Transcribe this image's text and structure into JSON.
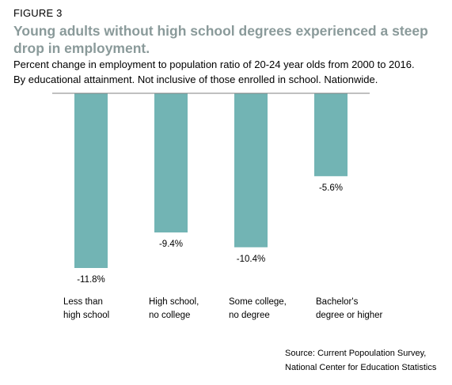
{
  "figure_label": "FIGURE 3",
  "source": "Source: Current Popoulation Survey,\nNational Center for Education Statistics",
  "bar_color": "#72b4b4",
  "axis_color": "#808080",
  "chart_data": {
    "type": "bar",
    "title": "Young adults without high school degrees experienced a steep drop in employment.",
    "subtitle": [
      "Percent change in employment to population ratio of 20-24 year olds from 2000 to 2016.",
      "By educational attainment. Not inclusive of those enrolled in school. Nationwide."
    ],
    "categories": [
      "Less than\nhigh school",
      "High school,\nno college",
      "Some college,\nno degree",
      "Bachelor's\ndegree or higher"
    ],
    "values": [
      -11.8,
      -9.4,
      -10.4,
      -5.6
    ],
    "data_labels": [
      "-11.8%",
      "-9.4%",
      "-10.4%",
      "-5.6%"
    ],
    "ylim": [
      -11.8,
      0
    ],
    "grid": false,
    "legend": "none"
  }
}
